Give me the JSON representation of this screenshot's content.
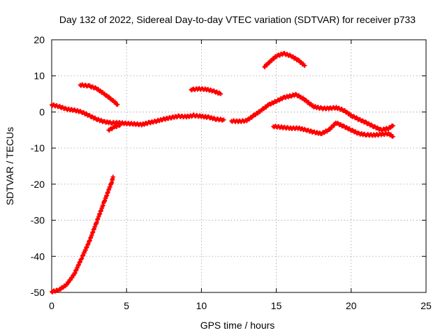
{
  "chart_data": {
    "type": "scatter",
    "title": "Day 132 of 2022, Sidereal Day-to-day VTEC variation (SDTVAR) for receiver p733",
    "xlabel": "GPS time / hours",
    "ylabel": "SDTVAR / TECUs",
    "xlim": [
      0,
      25
    ],
    "ylim": [
      -50,
      20
    ],
    "xticks": [
      0,
      5,
      10,
      15,
      20,
      25
    ],
    "yticks": [
      -50,
      -40,
      -30,
      -20,
      -10,
      0,
      10,
      20
    ],
    "grid": true,
    "marker_color": "#ff0000",
    "series": [
      {
        "name": "main-trace",
        "points": [
          [
            0,
            2
          ],
          [
            0.5,
            1.5
          ],
          [
            1,
            0.8
          ],
          [
            1.5,
            0.5
          ],
          [
            2,
            0
          ],
          [
            2.5,
            -1
          ],
          [
            3,
            -2
          ],
          [
            3.5,
            -2.7
          ],
          [
            4,
            -3
          ],
          [
            4.5,
            -3
          ],
          [
            5,
            -3.2
          ],
          [
            5.5,
            -3.3
          ],
          [
            6,
            -3.5
          ],
          [
            6.5,
            -3
          ],
          [
            7,
            -2.5
          ],
          [
            7.5,
            -2
          ],
          [
            8,
            -1.5
          ],
          [
            8.5,
            -1.2
          ],
          [
            9,
            -1.3
          ],
          [
            9.5,
            -1
          ],
          [
            10,
            -1.2
          ],
          [
            10.5,
            -1.5
          ],
          [
            11,
            -2
          ],
          [
            11.5,
            -2.2
          ]
        ]
      },
      {
        "name": "arc-morning",
        "points": [
          [
            1.9,
            7.5
          ],
          [
            2.5,
            7.2
          ],
          [
            3,
            6.5
          ],
          [
            3.5,
            5
          ],
          [
            4,
            3.5
          ],
          [
            4.4,
            2
          ]
        ]
      },
      {
        "name": "arc-noon",
        "points": [
          [
            9.3,
            6.2
          ],
          [
            9.8,
            6.4
          ],
          [
            10.3,
            6.3
          ],
          [
            10.8,
            5.8
          ],
          [
            11.3,
            5
          ]
        ]
      },
      {
        "name": "evening-trace",
        "points": [
          [
            12,
            -2.5
          ],
          [
            12.5,
            -2.6
          ],
          [
            13,
            -2.4
          ],
          [
            13.5,
            -1
          ],
          [
            14,
            0.5
          ],
          [
            14.5,
            2
          ],
          [
            15,
            3
          ],
          [
            15.5,
            4
          ],
          [
            16,
            4.5
          ],
          [
            16.3,
            4.8
          ],
          [
            16.7,
            4
          ],
          [
            17,
            3
          ],
          [
            17.5,
            1.5
          ],
          [
            18,
            1
          ],
          [
            18.5,
            1
          ],
          [
            19,
            1.2
          ],
          [
            19.5,
            0.5
          ],
          [
            20,
            -1
          ],
          [
            20.5,
            -2
          ],
          [
            21,
            -3
          ],
          [
            21.5,
            -4
          ],
          [
            22,
            -5
          ],
          [
            22.5,
            -4.5
          ],
          [
            22.8,
            -3.8
          ]
        ]
      },
      {
        "name": "arc-afternoon",
        "points": [
          [
            14.2,
            12.5
          ],
          [
            14.6,
            14
          ],
          [
            15,
            15.5
          ],
          [
            15.5,
            16.2
          ],
          [
            16,
            15.5
          ],
          [
            16.5,
            14.2
          ],
          [
            16.9,
            12.8
          ]
        ]
      },
      {
        "name": "lower-branch",
        "points": [
          [
            14.8,
            -4
          ],
          [
            15.5,
            -4.3
          ],
          [
            16,
            -4.5
          ],
          [
            16.5,
            -4.5
          ],
          [
            17,
            -5
          ],
          [
            17.5,
            -5.6
          ],
          [
            18,
            -6
          ],
          [
            18.5,
            -5
          ],
          [
            19,
            -3
          ],
          [
            19.5,
            -4
          ],
          [
            20,
            -5
          ],
          [
            20.5,
            -6
          ],
          [
            21,
            -6.3
          ],
          [
            21.5,
            -6.4
          ],
          [
            22,
            -6.2
          ],
          [
            22.5,
            -6
          ],
          [
            22.8,
            -6.8
          ]
        ]
      },
      {
        "name": "short-branch",
        "points": [
          [
            3.8,
            -5
          ],
          [
            4.2,
            -4.2
          ],
          [
            4.6,
            -3.5
          ]
        ]
      },
      {
        "name": "steep-rise",
        "points": [
          [
            0,
            -49.8
          ],
          [
            0.5,
            -49.3
          ],
          [
            1,
            -47.8
          ],
          [
            1.5,
            -45
          ],
          [
            2,
            -40.5
          ],
          [
            2.5,
            -36
          ],
          [
            3,
            -30.5
          ],
          [
            3.5,
            -25
          ],
          [
            4,
            -19.5
          ],
          [
            4.1,
            -18
          ]
        ]
      }
    ]
  }
}
